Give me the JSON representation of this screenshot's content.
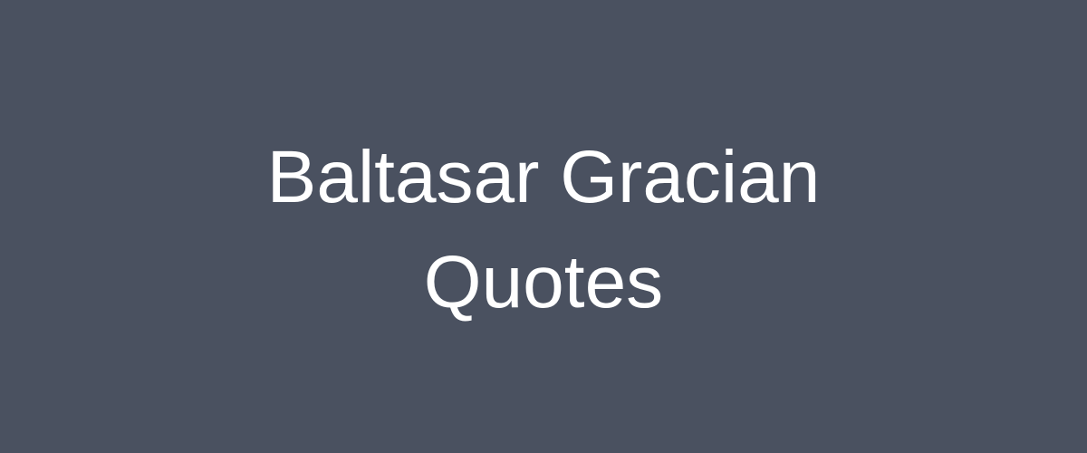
{
  "banner": {
    "title_line_1": "Baltasar Gracian",
    "title_line_2": "Quotes",
    "background_color": "#4a5160",
    "text_color": "#ffffff"
  }
}
